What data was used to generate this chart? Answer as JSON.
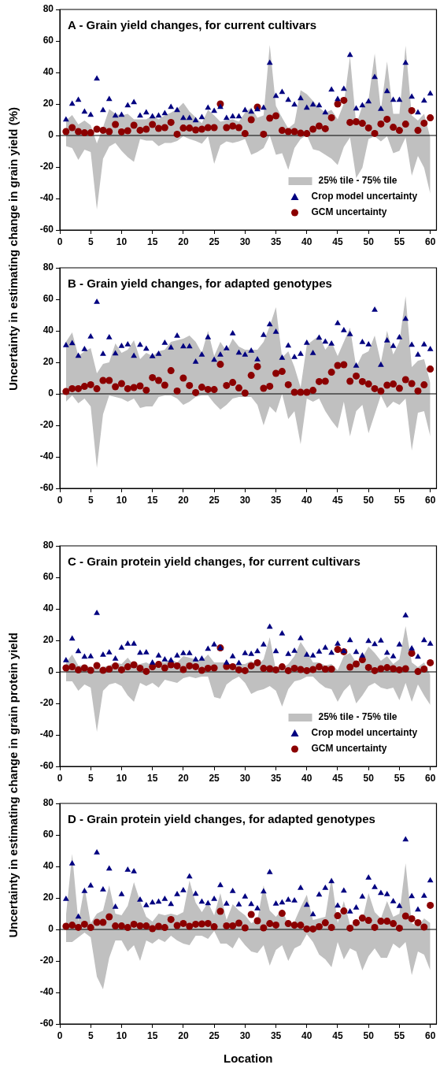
{
  "chart_data": [
    {
      "type": "scatter",
      "title": "A - Grain yield changes, for current cultivars",
      "ylabel": "Uncertainty in estimating change in grain yield (%)",
      "x": [
        1,
        2,
        3,
        4,
        5,
        6,
        7,
        8,
        9,
        10,
        11,
        12,
        13,
        14,
        15,
        16,
        17,
        18,
        19,
        20,
        21,
        22,
        23,
        24,
        25,
        26,
        27,
        28,
        29,
        30,
        31,
        32,
        33,
        34,
        35,
        36,
        37,
        38,
        39,
        40,
        41,
        42,
        43,
        44,
        45,
        46,
        47,
        48,
        49,
        50,
        51,
        52,
        53,
        54,
        55,
        56,
        57,
        58,
        59,
        60
      ],
      "xlim": [
        0,
        61
      ],
      "xticks": [
        0,
        5,
        10,
        15,
        20,
        25,
        30,
        35,
        40,
        45,
        50,
        55,
        60
      ],
      "ylim": [
        -60,
        80
      ],
      "yticks": [
        -60,
        -40,
        -20,
        0,
        20,
        40,
        60,
        80
      ],
      "grid": false,
      "legend": "bottom right",
      "ref_lines": [
        {
          "axis": "y",
          "value": 0,
          "color": "#000000"
        }
      ],
      "series": [
        {
          "name": "25% tile - 75% tile",
          "type": "area",
          "color": "#c0c0c0",
          "values": [
            null,
            null,
            null,
            null,
            null,
            null,
            null,
            null,
            null,
            null,
            null,
            null,
            null,
            null,
            null,
            null,
            null,
            null,
            null,
            null,
            null,
            null,
            null,
            null,
            null,
            null,
            null,
            null,
            null,
            null,
            null,
            null,
            null,
            null,
            null,
            null,
            null,
            null,
            null,
            null,
            null,
            null,
            null,
            null,
            null,
            null,
            null,
            null,
            null,
            null,
            null,
            null,
            null,
            null,
            null,
            null,
            null,
            null,
            null,
            null
          ],
          "upper": [
            9.5,
            13,
            7,
            9.5,
            6.5,
            -5,
            5.3,
            16.7,
            13.7,
            12.8,
            13.7,
            10.3,
            10.3,
            10.3,
            12.8,
            10.3,
            12.8,
            14.5,
            16.7,
            20.8,
            15.3,
            11.5,
            7.8,
            16.2,
            12.8,
            8.7,
            9.5,
            10.3,
            8.7,
            14.5,
            17.8,
            11.2,
            12.8,
            57.5,
            18.7,
            11.2,
            4.5,
            7.8,
            28.7,
            26.2,
            22,
            17.8,
            14.5,
            16.2,
            10.3,
            20.3,
            50.3,
            7,
            18.7,
            22.8,
            52,
            16.2,
            47,
            13.7,
            13.7,
            57,
            12.8,
            9.5,
            13.7,
            -1.3
          ],
          "lower": [
            -6.7,
            -8,
            -15.5,
            -9,
            -10.5,
            -47,
            -14.7,
            -7,
            -4.7,
            -9.7,
            -13.8,
            -16.7,
            -2.2,
            -3.3,
            -3.3,
            -6.7,
            -4.7,
            -4.7,
            -3.5,
            -0.5,
            -2.2,
            -3.5,
            -5.2,
            -0.5,
            -18,
            -6.3,
            -3.8,
            -4.7,
            -3.8,
            -2.2,
            -12.2,
            -10.5,
            -8,
            0,
            -12.2,
            -11.3,
            -21.8,
            -8,
            -2.2,
            0.3,
            -8.8,
            -9.7,
            -12.2,
            -14.7,
            -18.8,
            -7.2,
            -1.3,
            -27,
            -20.5,
            -2.2,
            -0.5,
            -3.8,
            -0.5,
            -11.3,
            -9.7,
            -1.3,
            -25.5,
            -13,
            -20.5,
            -37
          ]
        },
        {
          "name": "Crop model uncertainty",
          "type": "scatter",
          "marker": "triangle",
          "color": "#000080",
          "values": [
            10,
            20,
            22.5,
            15,
            13,
            36,
            16,
            23,
            12.5,
            13,
            19,
            21,
            12.5,
            14.5,
            12,
            12.5,
            14,
            18,
            16,
            11,
            11,
            9.5,
            11.5,
            17.5,
            15.5,
            18,
            11,
            12,
            12,
            16,
            15,
            16.5,
            17.5,
            46,
            25,
            27.5,
            22.5,
            19.5,
            23.5,
            17.5,
            19.5,
            19,
            14.5,
            29,
            23,
            29.5,
            51,
            17,
            19,
            21.5,
            37,
            16.7,
            28,
            22.5,
            22.5,
            46,
            24.5,
            14.5,
            22,
            26.5
          ]
        },
        {
          "name": "GCM uncertainty",
          "type": "scatter",
          "marker": "circle",
          "color": "#8b0000",
          "values": [
            2.5,
            5,
            2.5,
            1.7,
            1.7,
            4,
            3.3,
            2.5,
            7,
            2.3,
            3,
            6.5,
            3.3,
            4,
            7,
            4.5,
            5,
            8.3,
            0.8,
            4.7,
            4.7,
            3.5,
            4,
            5,
            5,
            20,
            5,
            6,
            5,
            1.2,
            10,
            18,
            0.8,
            11,
            12.5,
            3.2,
            2.5,
            2.5,
            1.5,
            1.2,
            4,
            6,
            4.3,
            11.3,
            20,
            22.3,
            8.3,
            8.7,
            7.7,
            4.8,
            1.3,
            7.3,
            10.3,
            5.2,
            3.2,
            7.2,
            15.8,
            3.2,
            7.8,
            11.2
          ]
        }
      ]
    },
    {
      "type": "scatter",
      "title": "B - Grain yield changes, for adapted genotypes",
      "x": [
        1,
        2,
        3,
        4,
        5,
        6,
        7,
        8,
        9,
        10,
        11,
        12,
        13,
        14,
        15,
        16,
        17,
        18,
        19,
        20,
        21,
        22,
        23,
        24,
        25,
        26,
        27,
        28,
        29,
        30,
        31,
        32,
        33,
        34,
        35,
        36,
        37,
        38,
        39,
        40,
        41,
        42,
        43,
        44,
        45,
        46,
        47,
        48,
        49,
        50,
        51,
        52,
        53,
        54,
        55,
        56,
        57,
        58,
        59,
        60
      ],
      "xlim": [
        0,
        61
      ],
      "xticks": [
        0,
        5,
        10,
        15,
        20,
        25,
        30,
        35,
        40,
        45,
        50,
        55,
        60
      ],
      "ylim": [
        -60,
        80
      ],
      "yticks": [
        -60,
        -40,
        -20,
        0,
        20,
        40,
        60,
        80
      ],
      "grid": false,
      "ref_lines": [
        {
          "axis": "y",
          "value": 0,
          "color": "#000000"
        }
      ],
      "series": [
        {
          "type": "area",
          "color": "#c0c0c0",
          "values": [
            null,
            null,
            null,
            null,
            null,
            null,
            null,
            null,
            null,
            null,
            null,
            null,
            null,
            null,
            null,
            null,
            null,
            null,
            null,
            null,
            null,
            null,
            null,
            null,
            null,
            null,
            null,
            null,
            null,
            null,
            null,
            null,
            null,
            null,
            null,
            null,
            null,
            null,
            null,
            null,
            null,
            null,
            null,
            null,
            null,
            null,
            null,
            null,
            null,
            null,
            null,
            null,
            null,
            null,
            null,
            null,
            null,
            null,
            null,
            null
          ],
          "upper": [
            33,
            39,
            24,
            27,
            29,
            13,
            19,
            20,
            32,
            26,
            28,
            34,
            22,
            26,
            24,
            27,
            28,
            33,
            34,
            35,
            37,
            33,
            26,
            40,
            24,
            33,
            27,
            35,
            30,
            28,
            28,
            28,
            33,
            43,
            55,
            23,
            27,
            17,
            4,
            31,
            34,
            37,
            28,
            33,
            24,
            33,
            42,
            17,
            25,
            27,
            37,
            20,
            40,
            25,
            33,
            62,
            17,
            21,
            22,
            7
          ],
          "lower": [
            -5,
            -1,
            -6,
            -3,
            -8,
            -47,
            -13,
            -1,
            -2,
            -3,
            -5,
            -3,
            -9,
            -8,
            -8,
            -2,
            -1,
            -1,
            -3,
            -7,
            -5,
            -2,
            -1,
            -1,
            -6,
            -10,
            -7,
            -3,
            -2,
            -2,
            -2,
            -7,
            -20,
            -8,
            -12,
            0,
            -16,
            -11,
            -32,
            -3,
            -5,
            -3,
            -11,
            -17,
            -22,
            -5,
            -27,
            -11,
            -7,
            -25,
            -13,
            -1,
            -9,
            -5,
            -7,
            -3,
            -36,
            -12,
            -11,
            -27
          ]
        },
        {
          "type": "scatter",
          "marker": "triangle",
          "color": "#000080",
          "values": [
            30.8,
            32,
            24,
            28.3,
            36.2,
            58.3,
            25.2,
            35.7,
            25.5,
            30.3,
            31.2,
            24,
            31,
            28.5,
            23.8,
            25.3,
            32.3,
            29.3,
            36.8,
            30,
            30,
            20.3,
            24.7,
            35.7,
            21.5,
            24.8,
            28.8,
            38.2,
            26,
            24.7,
            27.2,
            21.7,
            37.3,
            44,
            39.3,
            22.7,
            30.5,
            23.3,
            25.3,
            32.2,
            25.7,
            35.5,
            33,
            31.8,
            44.8,
            40.2,
            37.7,
            17.8,
            32.8,
            31.3,
            53.2,
            18.2,
            33.8,
            30.3,
            35.7,
            47.5,
            31,
            24.7,
            31.2,
            28.2
          ]
        },
        {
          "type": "scatter",
          "marker": "circle",
          "color": "#8b0000",
          "values": [
            1.5,
            3.3,
            3.3,
            4.7,
            5.8,
            3.2,
            8.5,
            8.5,
            4.5,
            6.5,
            3.3,
            4,
            5,
            2.3,
            10.3,
            8.5,
            5.5,
            14.7,
            1.8,
            10,
            5.3,
            0.8,
            4.2,
            2.8,
            2.7,
            18.7,
            5.3,
            7.2,
            3.7,
            0.5,
            11.7,
            17.3,
            3.5,
            4.8,
            13,
            14.2,
            5.8,
            1,
            1,
            1,
            2.2,
            7.8,
            8,
            13.7,
            18,
            18.5,
            8,
            11.3,
            7.8,
            6.2,
            3.3,
            1.7,
            5.5,
            6.2,
            3.5,
            9,
            6.5,
            1.8,
            5.7,
            15.7
          ]
        }
      ]
    },
    {
      "type": "scatter",
      "title": "C - Grain protein yield changes, for current cultivars",
      "ylabel": "Uncertainty in estimating change in grain protein yield",
      "x": [
        1,
        2,
        3,
        4,
        5,
        6,
        7,
        8,
        9,
        10,
        11,
        12,
        13,
        14,
        15,
        16,
        17,
        18,
        19,
        20,
        21,
        22,
        23,
        24,
        25,
        26,
        27,
        28,
        29,
        30,
        31,
        32,
        33,
        34,
        35,
        36,
        37,
        38,
        39,
        40,
        41,
        42,
        43,
        44,
        45,
        46,
        47,
        48,
        49,
        50,
        51,
        52,
        53,
        54,
        55,
        56,
        57,
        58,
        59,
        60
      ],
      "xlim": [
        0,
        61
      ],
      "xticks": [
        0,
        5,
        10,
        15,
        20,
        25,
        30,
        35,
        40,
        45,
        50,
        55,
        60
      ],
      "ylim": [
        -60,
        80
      ],
      "yticks": [
        -60,
        -40,
        -20,
        0,
        20,
        40,
        60,
        80
      ],
      "grid": false,
      "legend": "bottom right",
      "ref_lines": [
        {
          "axis": "y",
          "value": 0,
          "color": "#000000"
        }
      ],
      "series": [
        {
          "name": "25% tile - 75% tile",
          "type": "area",
          "color": "#c0c0c0",
          "values": [
            null,
            null,
            null,
            null,
            null,
            null,
            null,
            null,
            null,
            null,
            null,
            null,
            null,
            null,
            null,
            null,
            null,
            null,
            null,
            null,
            null,
            null,
            null,
            null,
            null,
            null,
            null,
            null,
            null,
            null,
            null,
            null,
            null,
            null,
            null,
            null,
            null,
            null,
            null,
            null,
            null,
            null,
            null,
            null,
            null,
            null,
            null,
            null,
            null,
            null,
            null,
            null,
            null,
            null,
            null,
            null,
            null,
            null,
            null,
            null
          ],
          "upper": [
            6,
            11,
            4,
            4,
            3,
            2,
            3,
            4,
            6,
            5,
            9,
            4,
            5,
            6,
            4,
            7,
            6,
            8,
            6,
            10,
            9,
            8,
            7,
            11,
            6,
            6,
            6,
            4,
            5,
            5,
            7,
            4,
            8,
            22,
            1,
            2,
            5,
            10,
            19,
            13,
            6,
            6,
            4,
            5,
            1,
            10,
            12,
            6,
            9,
            16,
            12,
            7,
            10,
            5,
            8,
            29,
            6,
            3,
            6,
            -2
          ],
          "lower": [
            -6,
            -6,
            -12,
            -8,
            -10,
            -38,
            -12,
            -8,
            -7,
            -9,
            -15,
            -19,
            -7,
            -9,
            -7,
            -10,
            -5,
            -6,
            -7,
            -4,
            -3,
            -4,
            -3,
            -3,
            -16,
            -17,
            -8,
            -5,
            -3,
            -7,
            -14,
            -12,
            -11,
            -9,
            -12,
            -22,
            -11,
            -6,
            -5,
            -3,
            -3,
            -7,
            -10,
            -11,
            -19,
            -12,
            -8,
            -20,
            -15,
            -9,
            -7,
            -10,
            -11,
            -10,
            -18,
            -7,
            -19,
            -8,
            -15,
            -21
          ]
        },
        {
          "name": "Crop model uncertainty",
          "type": "scatter",
          "marker": "triangle",
          "color": "#000080",
          "values": [
            7.2,
            21,
            13,
            9.5,
            9.8,
            37.3,
            10.7,
            12.2,
            8.3,
            15.2,
            17.7,
            17.8,
            12,
            12.2,
            5.8,
            10.3,
            7.7,
            7.3,
            10.3,
            11.8,
            11.8,
            7.7,
            8.3,
            14.5,
            17.3,
            15,
            5.7,
            9.7,
            5.5,
            11.7,
            11.2,
            13,
            17.2,
            28.5,
            13,
            24.3,
            11.3,
            13.2,
            21.3,
            10.7,
            10.2,
            12.7,
            15.3,
            12,
            17.7,
            13,
            20,
            12.5,
            10.2,
            19.5,
            17.5,
            19.8,
            12,
            9.7,
            17.3,
            35.7,
            14.8,
            9.5,
            20,
            17.7
          ]
        },
        {
          "name": "GCM uncertainty",
          "type": "scatter",
          "marker": "circle",
          "color": "#8b0000",
          "values": [
            2.5,
            3.2,
            1.2,
            2.5,
            1,
            4,
            1,
            1.7,
            3.7,
            1.3,
            3.2,
            4.5,
            2.3,
            0.3,
            3.2,
            4.7,
            2.5,
            4.5,
            3.8,
            1.5,
            3.8,
            3.3,
            1,
            2.3,
            2.5,
            15.2,
            3.5,
            3.3,
            1.3,
            0.8,
            3.8,
            5.8,
            2.2,
            2,
            1.3,
            3.2,
            0.8,
            2.3,
            1.5,
            0.8,
            1.5,
            3.2,
            1.7,
            1.8,
            14.2,
            12.8,
            3,
            5,
            7.7,
            2.8,
            0.8,
            2,
            2.7,
            2,
            1.3,
            2,
            11.8,
            0.2,
            1.8,
            5.8
          ]
        }
      ]
    },
    {
      "type": "scatter",
      "title": "D - Grain protein yield changes, for adapted genotypes",
      "xlabel": "Location",
      "x": [
        1,
        2,
        3,
        4,
        5,
        6,
        7,
        8,
        9,
        10,
        11,
        12,
        13,
        14,
        15,
        16,
        17,
        18,
        19,
        20,
        21,
        22,
        23,
        24,
        25,
        26,
        27,
        28,
        29,
        30,
        31,
        32,
        33,
        34,
        35,
        36,
        37,
        38,
        39,
        40,
        41,
        42,
        43,
        44,
        45,
        46,
        47,
        48,
        49,
        50,
        51,
        52,
        53,
        54,
        55,
        56,
        57,
        58,
        59,
        60
      ],
      "xlim": [
        0,
        61
      ],
      "xticks": [
        0,
        5,
        10,
        15,
        20,
        25,
        30,
        35,
        40,
        45,
        50,
        55,
        60
      ],
      "ylim": [
        -60,
        80
      ],
      "yticks": [
        -60,
        -40,
        -20,
        0,
        20,
        40,
        60,
        80
      ],
      "grid": false,
      "ref_lines": [
        {
          "axis": "y",
          "value": 0,
          "color": "#000000"
        }
      ],
      "series": [
        {
          "type": "area",
          "color": "#c0c0c0",
          "values": [
            null,
            null,
            null,
            null,
            null,
            null,
            null,
            null,
            null,
            null,
            null,
            null,
            null,
            null,
            null,
            null,
            null,
            null,
            null,
            null,
            null,
            null,
            null,
            null,
            null,
            null,
            null,
            null,
            null,
            null,
            null,
            null,
            null,
            null,
            null,
            null,
            null,
            null,
            null,
            null,
            null,
            null,
            null,
            null,
            null,
            null,
            null,
            null,
            null,
            null,
            null,
            null,
            null,
            null,
            null,
            null,
            null,
            null,
            null,
            null
          ],
          "upper": [
            9,
            48,
            5,
            27,
            4,
            10,
            12,
            28,
            10,
            9,
            15,
            30,
            18,
            8,
            5,
            10,
            9,
            10,
            9,
            11,
            31,
            17,
            11,
            17,
            9,
            23,
            6,
            16,
            12,
            9,
            4,
            6,
            28,
            12,
            8,
            13,
            3,
            5,
            14,
            22,
            6,
            7,
            8,
            33,
            4,
            18,
            3,
            4,
            6,
            23,
            11,
            7,
            18,
            8,
            10,
            42,
            4,
            2,
            7,
            4
          ],
          "lower": [
            -8,
            -8,
            -5,
            -2,
            -5,
            -30,
            -38,
            -18,
            -7,
            -7,
            -14,
            -10,
            -20,
            -7,
            -9,
            -6,
            -8,
            -4,
            -7,
            -9,
            -10,
            -4,
            -4,
            -6,
            -1,
            -9,
            -9,
            -12,
            -5,
            -10,
            -14,
            -15,
            -10,
            -23,
            -13,
            -10,
            -20,
            -12,
            -10,
            -3,
            -8,
            -16,
            -19,
            -24,
            -8,
            -19,
            -12,
            -14,
            -26,
            -17,
            -12,
            -18,
            -18,
            -9,
            -12,
            -8,
            -29,
            -14,
            -16,
            -26
          ]
        },
        {
          "type": "scatter",
          "marker": "triangle",
          "color": "#000080",
          "values": [
            19.3,
            41.7,
            8,
            24.3,
            27.8,
            48.8,
            25.2,
            38.5,
            14.2,
            22.2,
            37.7,
            36.7,
            18.7,
            15.3,
            17,
            17.5,
            19.2,
            16,
            22.2,
            24.7,
            33.5,
            22.5,
            17.5,
            16.5,
            19.2,
            28,
            16.2,
            24.2,
            15.8,
            20.7,
            16,
            13.2,
            24,
            36.2,
            16.3,
            17,
            18.7,
            18.2,
            26.2,
            15.5,
            9.5,
            22,
            26.2,
            30.5,
            15,
            24.5,
            11.2,
            13.8,
            20.8,
            32.7,
            26.7,
            23,
            22.2,
            17.8,
            14.8,
            57,
            21,
            12.5,
            21.2,
            31
          ]
        },
        {
          "type": "scatter",
          "marker": "circle",
          "color": "#8b0000",
          "values": [
            2,
            2.7,
            1.3,
            3.3,
            1.2,
            4.5,
            4.5,
            8,
            2.2,
            2.2,
            1.2,
            3.3,
            2.3,
            2.2,
            0.5,
            2,
            1.2,
            6.3,
            2.5,
            3.8,
            2,
            3.3,
            3.5,
            3.8,
            1.7,
            11.5,
            2.3,
            2.3,
            4,
            1,
            9.5,
            5.5,
            1,
            3.7,
            2.8,
            10.2,
            3.7,
            2.7,
            2.7,
            0.3,
            0.3,
            1.8,
            4.2,
            1.2,
            8.7,
            11.7,
            0.8,
            4.3,
            7.2,
            5.7,
            1.3,
            5.2,
            5.2,
            3.7,
            0.8,
            8.5,
            6.8,
            4.3,
            1.5,
            15.3
          ]
        }
      ]
    }
  ]
}
